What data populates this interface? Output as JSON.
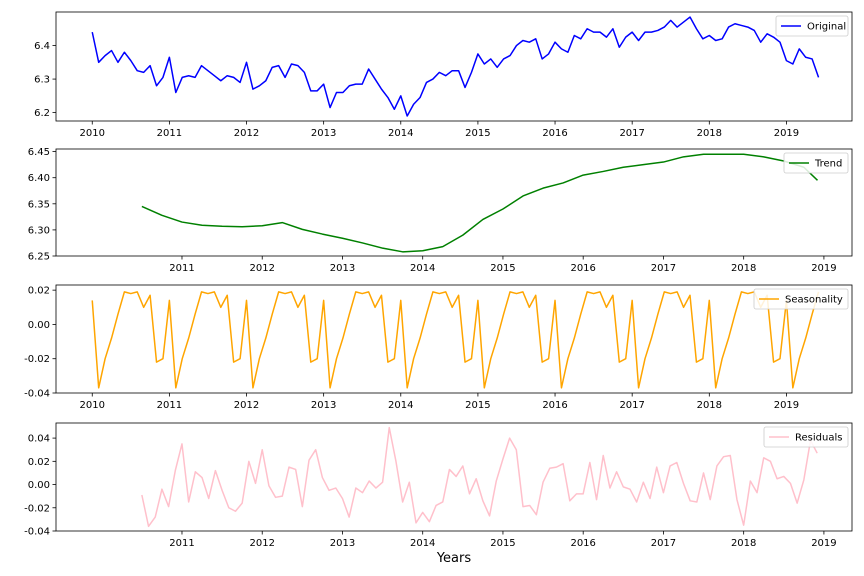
{
  "xlabel": "Years",
  "chart_data": [
    {
      "type": "line",
      "title": "",
      "xlim": [
        2009.53,
        2019.85
      ],
      "ylim": [
        6.175,
        6.5
      ],
      "xticks": [
        2010,
        2011,
        2012,
        2013,
        2014,
        2015,
        2016,
        2017,
        2018,
        2019
      ],
      "yticks": [
        6.2,
        6.3,
        6.4
      ],
      "ytick_format": 1,
      "legend_position": "top-right",
      "series": [
        {
          "name": "Original",
          "color": "#0000ff",
          "x_start": 2010.0,
          "x_step": 0.08333,
          "values": [
            6.44,
            6.35,
            6.37,
            6.385,
            6.35,
            6.38,
            6.355,
            6.325,
            6.32,
            6.34,
            6.28,
            6.305,
            6.365,
            6.26,
            6.305,
            6.31,
            6.305,
            6.34,
            6.325,
            6.31,
            6.295,
            6.31,
            6.305,
            6.29,
            6.35,
            6.27,
            6.28,
            6.295,
            6.335,
            6.34,
            6.305,
            6.345,
            6.34,
            6.32,
            6.265,
            6.265,
            6.285,
            6.215,
            6.26,
            6.26,
            6.28,
            6.285,
            6.285,
            6.33,
            6.3,
            6.27,
            6.245,
            6.21,
            6.25,
            6.19,
            6.225,
            6.245,
            6.29,
            6.3,
            6.32,
            6.31,
            6.325,
            6.325,
            6.275,
            6.32,
            6.375,
            6.345,
            6.36,
            6.335,
            6.36,
            6.37,
            6.4,
            6.415,
            6.41,
            6.42,
            6.36,
            6.375,
            6.41,
            6.39,
            6.38,
            6.43,
            6.42,
            6.45,
            6.44,
            6.44,
            6.425,
            6.45,
            6.395,
            6.425,
            6.44,
            6.415,
            6.44,
            6.44,
            6.445,
            6.455,
            6.475,
            6.455,
            6.47,
            6.485,
            6.45,
            6.42,
            6.43,
            6.415,
            6.42,
            6.455,
            6.465,
            6.46,
            6.455,
            6.445,
            6.41,
            6.435,
            6.425,
            6.41,
            6.355,
            6.345,
            6.39,
            6.365,
            6.36,
            6.305
          ]
        }
      ]
    },
    {
      "type": "line",
      "title": "",
      "xlim": [
        2009.43,
        2019.35
      ],
      "ylim": [
        6.25,
        6.455
      ],
      "xticks": [
        2011,
        2012,
        2013,
        2014,
        2015,
        2016,
        2017,
        2018,
        2019
      ],
      "yticks": [
        6.25,
        6.3,
        6.35,
        6.4,
        6.45
      ],
      "ytick_format": 2,
      "legend_position": "top-right",
      "series": [
        {
          "name": "Trend",
          "color": "#008000",
          "x": [
            2010.5,
            2010.75,
            2011.0,
            2011.25,
            2011.5,
            2011.75,
            2012.0,
            2012.25,
            2012.5,
            2012.75,
            2013.0,
            2013.25,
            2013.5,
            2013.75,
            2014.0,
            2014.25,
            2014.5,
            2014.75,
            2015.0,
            2015.25,
            2015.5,
            2015.75,
            2016.0,
            2016.25,
            2016.5,
            2016.75,
            2017.0,
            2017.25,
            2017.5,
            2017.75,
            2018.0,
            2018.25,
            2018.5,
            2018.75,
            2018.92
          ],
          "values": [
            6.345,
            6.328,
            6.315,
            6.309,
            6.307,
            6.306,
            6.308,
            6.314,
            6.301,
            6.292,
            6.284,
            6.275,
            6.265,
            6.258,
            6.26,
            6.268,
            6.29,
            6.32,
            6.34,
            6.365,
            6.38,
            6.39,
            6.405,
            6.412,
            6.42,
            6.425,
            6.43,
            6.44,
            6.445,
            6.445,
            6.445,
            6.44,
            6.432,
            6.42,
            6.395
          ]
        }
      ]
    },
    {
      "type": "line",
      "title": "",
      "xlim": [
        2009.53,
        2019.85
      ],
      "ylim": [
        -0.04,
        0.023
      ],
      "xticks": [
        2010,
        2011,
        2012,
        2013,
        2014,
        2015,
        2016,
        2017,
        2018,
        2019
      ],
      "yticks": [
        -0.04,
        -0.02,
        0.0,
        0.02
      ],
      "ytick_format": 2,
      "legend_position": "top-right",
      "series": [
        {
          "name": "Seasonality",
          "color": "#ffa500",
          "x_start": 2010.0,
          "x_step": 0.08333,
          "period_pattern": [
            0.014,
            -0.037,
            -0.02,
            -0.008,
            0.006,
            0.019,
            0.018,
            0.019,
            0.01,
            0.017,
            -0.022,
            -0.02
          ],
          "cycles": 9.5
        }
      ]
    },
    {
      "type": "line",
      "title": "",
      "xlim": [
        2009.43,
        2019.35
      ],
      "ylim": [
        -0.04,
        0.053
      ],
      "xticks": [
        2011,
        2012,
        2013,
        2014,
        2015,
        2016,
        2017,
        2018,
        2019
      ],
      "yticks": [
        -0.04,
        -0.02,
        0.0,
        0.02,
        0.04
      ],
      "ytick_format": 2,
      "legend_position": "top-right",
      "series": [
        {
          "name": "Residuals",
          "color": "#ffc0cb",
          "x_start": 2010.5,
          "x_step": 0.08333,
          "values": [
            -0.009,
            -0.036,
            -0.028,
            -0.004,
            -0.019,
            0.012,
            0.035,
            -0.015,
            0.011,
            0.006,
            -0.012,
            0.012,
            -0.005,
            -0.02,
            -0.023,
            -0.016,
            0.02,
            0.001,
            0.03,
            -0.001,
            -0.011,
            -0.01,
            0.015,
            0.013,
            -0.019,
            0.021,
            0.03,
            0.006,
            -0.005,
            -0.003,
            -0.012,
            -0.028,
            -0.003,
            -0.007,
            0.003,
            -0.003,
            0.002,
            0.049,
            0.02,
            -0.015,
            0.002,
            -0.033,
            -0.024,
            -0.032,
            -0.018,
            -0.015,
            0.013,
            0.007,
            0.016,
            -0.008,
            0.005,
            -0.014,
            -0.027,
            0.003,
            0.022,
            0.04,
            0.03,
            -0.019,
            -0.018,
            -0.026,
            0.002,
            0.014,
            0.015,
            0.018,
            -0.014,
            -0.008,
            -0.008,
            0.019,
            -0.013,
            0.025,
            -0.003,
            0.011,
            -0.002,
            -0.004,
            -0.015,
            0.002,
            -0.012,
            0.015,
            -0.007,
            0.016,
            0.019,
            0.001,
            -0.014,
            -0.015,
            0.01,
            -0.013,
            0.016,
            0.024,
            0.025,
            -0.013,
            -0.035,
            0.003,
            -0.007,
            0.023,
            0.02,
            0.005,
            0.007,
            0.001,
            -0.016,
            0.004,
            0.038,
            0.027
          ]
        }
      ]
    }
  ]
}
